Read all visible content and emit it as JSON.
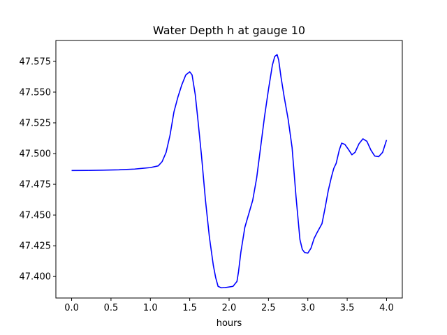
{
  "chart_data": {
    "type": "line",
    "title": "Water Depth h at gauge 10",
    "xlabel": "hours",
    "ylabel": "",
    "xlim": [
      -0.2,
      4.2
    ],
    "ylim": [
      47.3825,
      47.592
    ],
    "xticks": [
      0.0,
      0.5,
      1.0,
      1.5,
      2.0,
      2.5,
      3.0,
      3.5,
      4.0
    ],
    "xtick_labels": [
      "0.0",
      "0.5",
      "1.0",
      "1.5",
      "2.0",
      "2.5",
      "3.0",
      "3.5",
      "4.0"
    ],
    "yticks": [
      47.4,
      47.425,
      47.45,
      47.475,
      47.5,
      47.525,
      47.55,
      47.575
    ],
    "ytick_labels": [
      "47.400",
      "47.425",
      "47.450",
      "47.475",
      "47.500",
      "47.525",
      "47.550",
      "47.575"
    ],
    "grid": false,
    "series": [
      {
        "color": "#0000ff",
        "x": [
          0.0,
          0.2,
          0.4,
          0.6,
          0.8,
          0.9,
          1.0,
          1.1,
          1.15,
          1.2,
          1.25,
          1.3,
          1.35,
          1.4,
          1.45,
          1.5,
          1.53,
          1.57,
          1.6,
          1.65,
          1.7,
          1.75,
          1.8,
          1.83,
          1.86,
          1.9,
          1.95,
          2.0,
          2.05,
          2.1,
          2.12,
          2.15,
          2.2,
          2.25,
          2.3,
          2.35,
          2.4,
          2.45,
          2.5,
          2.55,
          2.58,
          2.61,
          2.63,
          2.66,
          2.7,
          2.75,
          2.8,
          2.85,
          2.9,
          2.93,
          2.96,
          3.0,
          3.04,
          3.08,
          3.12,
          3.18,
          3.22,
          3.26,
          3.3,
          3.33,
          3.36,
          3.4,
          3.43,
          3.47,
          3.52,
          3.56,
          3.6,
          3.65,
          3.7,
          3.75,
          3.8,
          3.85,
          3.9,
          3.95,
          4.0
        ],
        "values": [
          47.4862,
          47.4863,
          47.4865,
          47.4868,
          47.4874,
          47.488,
          47.4886,
          47.49,
          47.4935,
          47.501,
          47.515,
          47.534,
          47.546,
          47.556,
          47.564,
          47.5665,
          47.564,
          47.548,
          47.53,
          47.498,
          47.462,
          47.432,
          47.409,
          47.399,
          47.392,
          47.3908,
          47.391,
          47.3915,
          47.392,
          47.396,
          47.404,
          47.42,
          47.44,
          47.451,
          47.462,
          47.48,
          47.505,
          47.53,
          47.552,
          47.572,
          47.579,
          47.5805,
          47.576,
          47.562,
          47.546,
          47.528,
          47.505,
          47.465,
          47.43,
          47.422,
          47.4195,
          47.419,
          47.423,
          47.431,
          47.436,
          47.443,
          47.456,
          47.47,
          47.481,
          47.488,
          47.492,
          47.503,
          47.5085,
          47.5075,
          47.503,
          47.499,
          47.501,
          47.508,
          47.512,
          47.51,
          47.503,
          47.498,
          47.4975,
          47.501,
          47.511
        ]
      }
    ]
  }
}
